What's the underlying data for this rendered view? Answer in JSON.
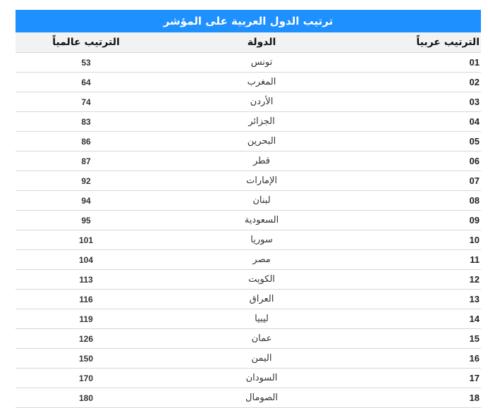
{
  "title": "ترتيب الدول العربية على المؤشر",
  "headers": {
    "arab_rank": "الترتيب عربياً",
    "country": "الدولة",
    "world_rank": "الترتيب عالمياً"
  },
  "rows": [
    {
      "arab_rank": "01",
      "country": "تونس",
      "world_rank": "53"
    },
    {
      "arab_rank": "02",
      "country": "المغرب",
      "world_rank": "64"
    },
    {
      "arab_rank": "03",
      "country": "الأردن",
      "world_rank": "74"
    },
    {
      "arab_rank": "04",
      "country": "الجزائر",
      "world_rank": "83"
    },
    {
      "arab_rank": "05",
      "country": "البحرين",
      "world_rank": "86"
    },
    {
      "arab_rank": "06",
      "country": "قطر",
      "world_rank": "87"
    },
    {
      "arab_rank": "07",
      "country": "الإمارات",
      "world_rank": "92"
    },
    {
      "arab_rank": "08",
      "country": "لبنان",
      "world_rank": "94"
    },
    {
      "arab_rank": "09",
      "country": "السعودية",
      "world_rank": "95"
    },
    {
      "arab_rank": "10",
      "country": "سوريا",
      "world_rank": "101"
    },
    {
      "arab_rank": "11",
      "country": "مصر",
      "world_rank": "104"
    },
    {
      "arab_rank": "12",
      "country": "الكويت",
      "world_rank": "113"
    },
    {
      "arab_rank": "13",
      "country": "العراق",
      "world_rank": "116"
    },
    {
      "arab_rank": "14",
      "country": "ليبيا",
      "world_rank": "119"
    },
    {
      "arab_rank": "15",
      "country": "عمان",
      "world_rank": "126"
    },
    {
      "arab_rank": "16",
      "country": "اليمن",
      "world_rank": "150"
    },
    {
      "arab_rank": "17",
      "country": "السودان",
      "world_rank": "170"
    },
    {
      "arab_rank": "18",
      "country": "الصومال",
      "world_rank": "180"
    }
  ],
  "colors": {
    "title_bg": "#1e90ff",
    "header_bg": "#f2f2f2",
    "row_border": "#d7d7d7"
  }
}
